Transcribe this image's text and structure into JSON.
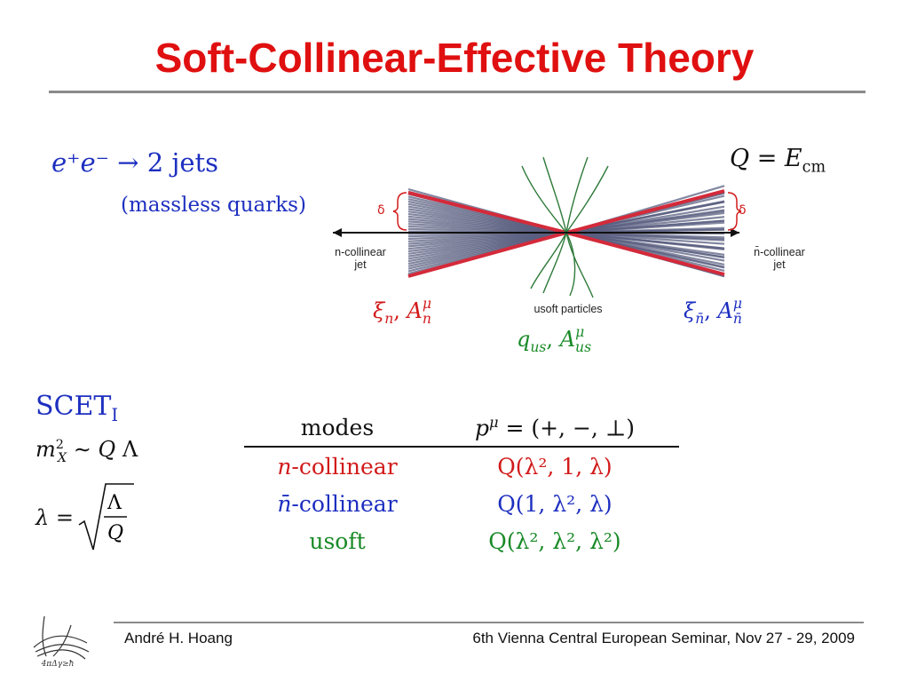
{
  "slide": {
    "title": "Soft-Collinear-Effective Theory"
  },
  "process": {
    "lhs": "e⁺e⁻",
    "arrow": "→",
    "rhs": "2 jets",
    "note": "(massless quarks)",
    "energy": "Q = E"
  },
  "diagram": {
    "delta_left": "δ",
    "delta_right": "δ",
    "n_jet_label_1": "n-collinear",
    "n_jet_label_2": "jet",
    "nbar_jet_label_1": "n̄-collinear",
    "nbar_jet_label_2": "jet",
    "usoft_label": "usoft particles",
    "n_fields": "ξ",
    "nbar_fields": "ξ",
    "us_fields": "q",
    "colors": {
      "jet_lines": "#5a5f80",
      "jet_edges": "#d42a3a",
      "axis": "#111111",
      "usoft_lines": "#2f7a3a"
    }
  },
  "scet": {
    "label": "SCET",
    "subscript": "I",
    "mx_relation": "m",
    "lambda_def": "λ ="
  },
  "modes_table": {
    "header_modes": "modes",
    "header_momentum": "p",
    "rows": [
      {
        "mode_prefix": "n",
        "mode": "-collinear",
        "scaling": "Q(λ², 1, λ)",
        "color": "#d21a1a"
      },
      {
        "mode_prefix": "n̄",
        "mode": "-collinear",
        "scaling": "Q(1, λ², λ)",
        "color": "#1d2fc0"
      },
      {
        "mode_prefix": "",
        "mode": "usoft",
        "scaling": "Q(λ², λ², λ²)",
        "color": "#1a8a28"
      }
    ]
  },
  "footer": {
    "author": "André H. Hoang",
    "event": "6th Vienna Central European Seminar, Nov 27 - 29, 2009",
    "logo_text": "4πΔγ≥ħ"
  }
}
